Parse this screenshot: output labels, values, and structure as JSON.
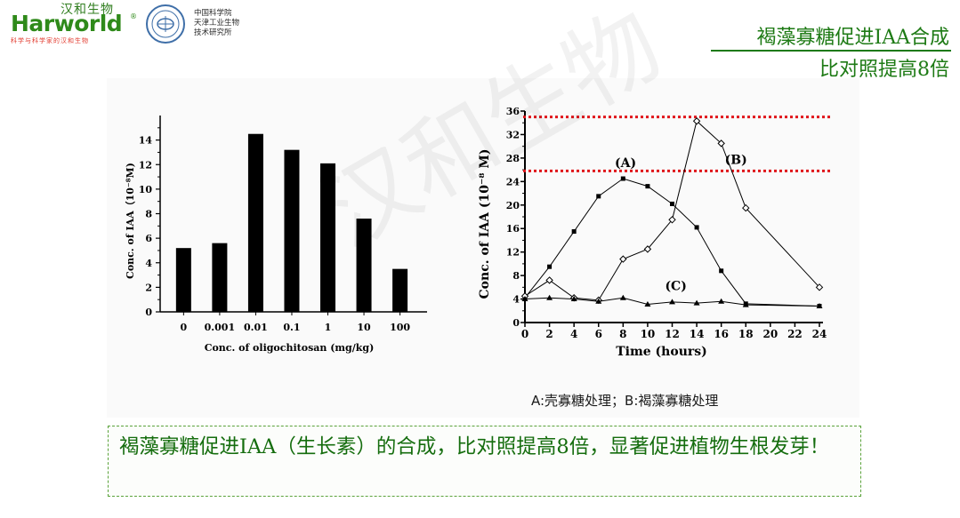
{
  "header": {
    "logo_cn": "汉和生物",
    "logo_en": "Harworld",
    "logo_reg": "®",
    "logo_slogan": "科学与科学家的汉和生物",
    "institute_lines": [
      "中国科学院",
      "天津工业生物",
      "技术研究所"
    ],
    "title_line1": "褐藻寡糖促进IAA合成",
    "title_line2": "比对照提高8倍",
    "accent_color": "#1d7a14"
  },
  "watermark": "汉和生物",
  "caption": "A:壳寡糖处理；B:褐藻寡糖处理",
  "callout": {
    "text": "褐藻寡糖促进IAA（生长素）的合成，比对照提高8倍，显著促进植物生根发芽！",
    "border_color": "#5aa23a"
  },
  "chart_data": [
    {
      "type": "bar",
      "xlabel": "Conc. of  oligochitosan (mg/kg)",
      "ylabel": "Conc. of IAA（10⁻⁸M)",
      "categories": [
        "0",
        "0.001",
        "0.01",
        "0.1",
        "1",
        "10",
        "100"
      ],
      "values": [
        5.2,
        5.6,
        14.5,
        13.2,
        12.1,
        7.6,
        3.5
      ],
      "ylim": [
        0,
        16
      ],
      "yticks": [
        "0",
        "2",
        "4",
        "6",
        "8",
        "10",
        "12",
        "14"
      ]
    },
    {
      "type": "line",
      "xlabel": "Time (hours)",
      "ylabel": "Conc. of IAA (10⁻⁸ M)",
      "x": [
        0,
        2,
        4,
        6,
        8,
        10,
        12,
        14,
        16,
        18,
        24
      ],
      "xticks": [
        "0",
        "2",
        "4",
        "6",
        "8",
        "10",
        "12",
        "14",
        "16",
        "18",
        "20",
        "22",
        "24"
      ],
      "yticks": [
        "0",
        "4",
        "8",
        "12",
        "16",
        "20",
        "24",
        "28",
        "32",
        "36"
      ],
      "xlim": [
        0,
        24
      ],
      "ylim": [
        0,
        36
      ],
      "series": [
        {
          "name": "(A)",
          "marker": "square",
          "values": [
            4.2,
            9.5,
            15.5,
            21.5,
            24.5,
            23.2,
            20.2,
            16.2,
            8.8,
            3.2,
            2.8
          ]
        },
        {
          "name": "(B)",
          "marker": "diamond",
          "values": [
            4.5,
            7.2,
            4.2,
            3.8,
            10.8,
            12.5,
            17.5,
            34.3,
            30.5,
            19.5,
            6.0
          ]
        },
        {
          "name": "(C)",
          "marker": "triangle",
          "values": [
            4.0,
            4.2,
            4.0,
            3.6,
            4.2,
            3.1,
            3.5,
            3.3,
            3.6,
            3.0,
            2.8
          ]
        }
      ],
      "reference_lines": [
        35,
        25.8
      ],
      "reference_color": "#e0161b"
    }
  ]
}
